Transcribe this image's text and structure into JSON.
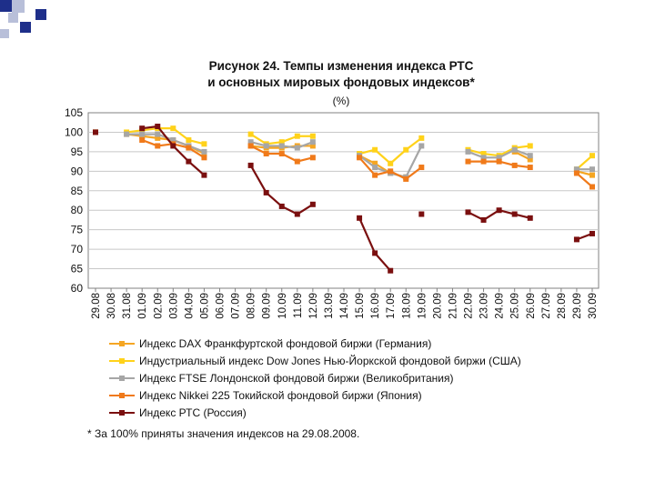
{
  "slide": {
    "title": "Рисунок 24. Темпы изменения индекса РТС",
    "subtitle": "и основных мировых фондовых индексов*",
    "unit": "(%)",
    "footnote": "* За 100% приняты значения индексов на 29.08.2008."
  },
  "colors": {
    "dax": "#f5a623",
    "dow": "#ffd21a",
    "ftse": "#a6a6a6",
    "nikkei": "#f07a1a",
    "rts": "#7a0f0f",
    "deco_blue": "#1e2f8a",
    "deco_light": "#b8bfd9"
  },
  "chart_data": {
    "type": "line",
    "title": "Рисунок 24. Темпы изменения индекса РТС и основных мировых фондовых индексов*",
    "ylabel": "(%)",
    "xlabel": "",
    "ylim": [
      60,
      105
    ],
    "yticks": [
      "105",
      "100",
      "95",
      "90",
      "85",
      "80",
      "75",
      "70",
      "65",
      "60"
    ],
    "grid": true,
    "categories": [
      "29.08",
      "30.08",
      "31.08",
      "01.09",
      "02.09",
      "03.09",
      "04.09",
      "05.09",
      "06.09",
      "07.09",
      "08.09",
      "09.09",
      "10.09",
      "11.09",
      "12.09",
      "13.09",
      "14.09",
      "15.09",
      "16.09",
      "17.09",
      "18.09",
      "19.09",
      "20.09",
      "21.09",
      "22.09",
      "23.09",
      "24.09",
      "25.09",
      "26.09",
      "27.09",
      "28.09",
      "29.09",
      "30.09"
    ],
    "series": [
      {
        "key": "dax",
        "name": "Индекс DAX Франкфуртской фондовой биржи (Германия)",
        "values": [
          100,
          null,
          99.5,
          99,
          98.5,
          98,
          96.5,
          94.5,
          null,
          null,
          96.5,
          96,
          96,
          96.5,
          96.5,
          null,
          null,
          94,
          92,
          89.5,
          88.5,
          null,
          null,
          null,
          null,
          null,
          null,
          95,
          93,
          null,
          null,
          90,
          89
        ]
      },
      {
        "key": "dow",
        "name": "Индустриальный индекс Dow Jones Нью-Йоркской фондовой биржи (США)",
        "values": [
          100,
          null,
          100,
          100.5,
          101,
          101,
          98,
          97,
          null,
          null,
          99.5,
          97,
          97.5,
          99,
          99,
          null,
          null,
          94.5,
          95.5,
          92,
          95.5,
          98.5,
          null,
          null,
          95.5,
          94.5,
          94,
          96,
          96.5,
          null,
          null,
          90.5,
          94
        ]
      },
      {
        "key": "ftse",
        "name": "Индекс FTSE Лондонской фондовой биржи (Великобритания)",
        "values": [
          100,
          null,
          99.5,
          99.5,
          99.5,
          98,
          96.5,
          95,
          null,
          null,
          97.5,
          96.5,
          96.5,
          96,
          97.5,
          null,
          null,
          94,
          91,
          89.5,
          88.5,
          96.5,
          null,
          null,
          95,
          93.5,
          93.5,
          95.5,
          94,
          null,
          null,
          90.5,
          90.5
        ]
      },
      {
        "key": "nikkei",
        "name": "Индекс Nikkei 225 Токийской фондовой биржи (Япония)",
        "values": [
          100,
          null,
          null,
          98,
          96.5,
          97,
          96,
          93.5,
          null,
          null,
          96.5,
          94.5,
          94.5,
          92.5,
          93.5,
          null,
          null,
          93.5,
          89,
          90,
          88,
          91,
          null,
          null,
          92.5,
          92.5,
          92.5,
          91.5,
          91,
          null,
          null,
          89.5,
          86
        ]
      },
      {
        "key": "rts",
        "name": "Индекс РТС (Россия)",
        "values": [
          100,
          null,
          null,
          101,
          101.5,
          96.5,
          92.5,
          89,
          null,
          null,
          91.5,
          84.5,
          81,
          79,
          81.5,
          null,
          null,
          78,
          69,
          64.5,
          null,
          79,
          null,
          null,
          79.5,
          77.5,
          80,
          79,
          78,
          null,
          null,
          72.5,
          74
        ]
      }
    ]
  }
}
